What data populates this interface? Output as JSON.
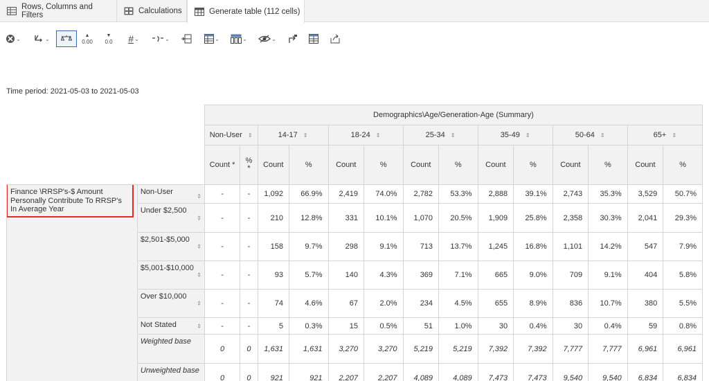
{
  "tabs": [
    {
      "label": "Rows, Columns and Filters"
    },
    {
      "label": "Calculations"
    },
    {
      "label": "Generate table (112 cells)"
    }
  ],
  "toolbar": {
    "items": [
      {
        "icon": "no-data-icon"
      },
      {
        "icon": "merge-arrows-icon"
      },
      {
        "icon": "significance-icon"
      },
      {
        "icon": "increase-decimals-icon",
        "text": "0.00"
      },
      {
        "icon": "decrease-decimals-icon",
        "text": "0.0"
      },
      {
        "icon": "number-format-icon",
        "text": "#"
      },
      {
        "icon": "dash-format-icon"
      },
      {
        "icon": "row-insert-icon"
      },
      {
        "icon": "table-layout-icon"
      },
      {
        "icon": "columns-layout-icon"
      },
      {
        "icon": "visibility-icon"
      },
      {
        "icon": "swap-icon"
      },
      {
        "icon": "table-icon"
      },
      {
        "icon": "export-icon"
      }
    ]
  },
  "time_period": "Time period: 2021-05-03 to 2021-05-03",
  "table": {
    "banner": "Demographics\\Age/Generation-Age (Summary)",
    "row_variable": "Finance \\RRSP's-$ Amount Personally Contribute To RRSP's In Average Year",
    "groups": [
      {
        "label": "Non-User",
        "sub": [
          "Count *",
          "%\n*"
        ]
      },
      {
        "label": "14-17",
        "sub": [
          "Count",
          "%"
        ]
      },
      {
        "label": "18-24",
        "sub": [
          "Count",
          "%"
        ]
      },
      {
        "label": "25-34",
        "sub": [
          "Count",
          "%"
        ]
      },
      {
        "label": "35-49",
        "sub": [
          "Count",
          "%"
        ]
      },
      {
        "label": "50-64",
        "sub": [
          "Count",
          "%"
        ]
      },
      {
        "label": "65+",
        "sub": [
          "Count",
          "%"
        ]
      }
    ],
    "rows": [
      {
        "label": "Non-User",
        "values": [
          "-",
          "-",
          "1,092",
          "66.9%",
          "2,419",
          "74.0%",
          "2,782",
          "53.3%",
          "2,888",
          "39.1%",
          "2,743",
          "35.3%",
          "3,529",
          "50.7%"
        ]
      },
      {
        "label": "Under $2,500",
        "values": [
          "-",
          "-",
          "210",
          "12.8%",
          "331",
          "10.1%",
          "1,070",
          "20.5%",
          "1,909",
          "25.8%",
          "2,358",
          "30.3%",
          "2,041",
          "29.3%"
        ]
      },
      {
        "label": "$2,501-$5,000",
        "values": [
          "-",
          "-",
          "158",
          "9.7%",
          "298",
          "9.1%",
          "713",
          "13.7%",
          "1,245",
          "16.8%",
          "1,101",
          "14.2%",
          "547",
          "7.9%"
        ]
      },
      {
        "label": "$5,001-$10,000",
        "values": [
          "-",
          "-",
          "93",
          "5.7%",
          "140",
          "4.3%",
          "369",
          "7.1%",
          "665",
          "9.0%",
          "709",
          "9.1%",
          "404",
          "5.8%"
        ]
      },
      {
        "label": "Over $10,000",
        "values": [
          "-",
          "-",
          "74",
          "4.6%",
          "67",
          "2.0%",
          "234",
          "4.5%",
          "655",
          "8.9%",
          "836",
          "10.7%",
          "380",
          "5.5%"
        ]
      },
      {
        "label": "Not Stated",
        "values": [
          "-",
          "-",
          "5",
          "0.3%",
          "15",
          "0.5%",
          "51",
          "1.0%",
          "30",
          "0.4%",
          "30",
          "0.4%",
          "59",
          "0.8%"
        ]
      },
      {
        "label": "Weighted base",
        "italic": true,
        "values": [
          "0",
          "0",
          "1,631",
          "1,631",
          "3,270",
          "3,270",
          "5,219",
          "5,219",
          "7,392",
          "7,392",
          "7,777",
          "7,777",
          "6,961",
          "6,961"
        ]
      },
      {
        "label": "Unweighted base",
        "italic": true,
        "values": [
          "0",
          "0",
          "921",
          "921",
          "2,207",
          "2,207",
          "4,089",
          "4,089",
          "7,473",
          "7,473",
          "9,540",
          "9,540",
          "6,834",
          "6,834"
        ]
      }
    ]
  }
}
